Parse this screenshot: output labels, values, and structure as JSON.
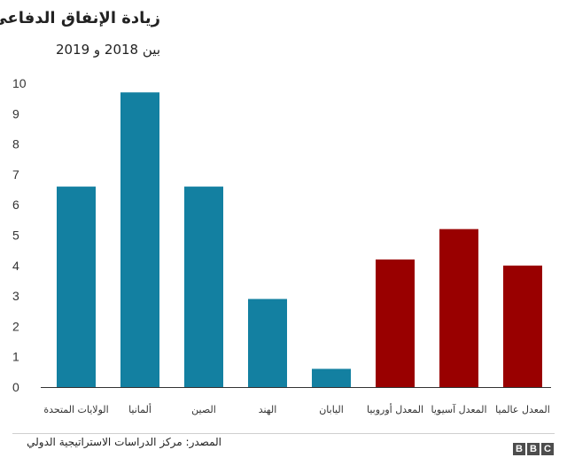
{
  "header": {
    "title": "زيادة الإنفاق الدفاعي",
    "subtitle": "بين 2018 و 2019"
  },
  "footer": {
    "source": "المصدر: مركز الدراسات الاستراتيجية الدولي",
    "logo_letters": [
      "B",
      "B",
      "C"
    ]
  },
  "colors": {
    "country": "#1380a1",
    "average": "#990000",
    "axis": "#333333"
  },
  "chart_data": {
    "type": "bar",
    "title": "زيادة الإنفاق الدفاعي",
    "subtitle": "بين 2018 و 2019",
    "xlabel": "",
    "ylabel": "",
    "ylim": [
      0,
      10
    ],
    "yticks": [
      "0",
      "1",
      "2",
      "3",
      "4",
      "5",
      "6",
      "7",
      "8",
      "9",
      "10"
    ],
    "grid": false,
    "categories": [
      "الولايات المتحدة",
      "ألمانيا",
      "الصين",
      "الهند",
      "اليابان",
      "المعدل أوروبيا",
      "المعدل آسيويا",
      "المعدل عالميا"
    ],
    "values": [
      6.6,
      9.7,
      6.6,
      2.9,
      0.6,
      4.2,
      5.2,
      4.0
    ],
    "bar_colors": [
      "#1380a1",
      "#1380a1",
      "#1380a1",
      "#1380a1",
      "#1380a1",
      "#990000",
      "#990000",
      "#990000"
    ]
  }
}
